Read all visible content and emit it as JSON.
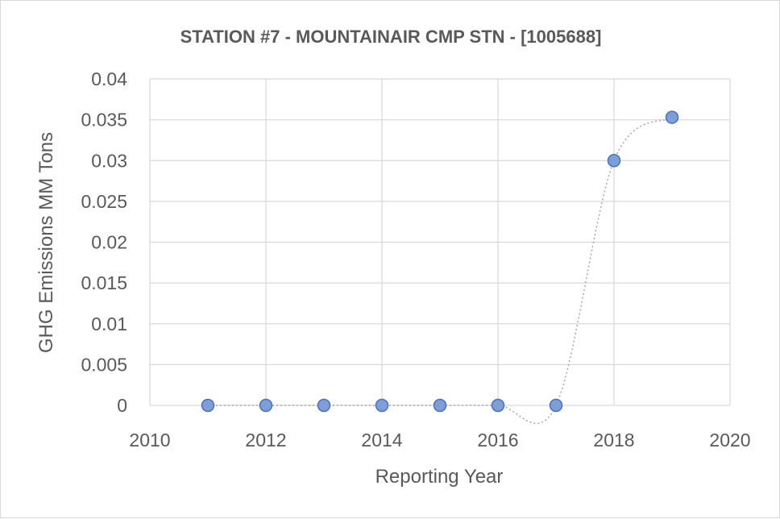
{
  "chart_data": {
    "type": "scatter",
    "title": "STATION #7 - MOUNTAINAIR CMP STN - [1005688]",
    "xlabel": "Reporting Year",
    "ylabel": "GHG Emissions MM Tons",
    "xlim": [
      2010,
      2020
    ],
    "ylim": [
      0,
      0.04
    ],
    "x_ticks": [
      "2010",
      "2012",
      "2014",
      "2016",
      "2018",
      "2020"
    ],
    "y_ticks": [
      "0",
      "0.005",
      "0.01",
      "0.015",
      "0.02",
      "0.025",
      "0.03",
      "0.035",
      "0.04"
    ],
    "grid": true,
    "legend": "none",
    "series": [
      {
        "x": [
          2011,
          2012,
          2013,
          2014,
          2015,
          2016,
          2017,
          2018,
          2019
        ],
        "y": [
          0,
          0,
          0,
          0,
          0,
          0,
          0,
          0.03,
          0.0353
        ],
        "marker_color": "#7f9ed8",
        "marker_edge": "#4472c4",
        "line_style": "dotted smooth",
        "line_color": "#a6a6a6"
      }
    ]
  }
}
